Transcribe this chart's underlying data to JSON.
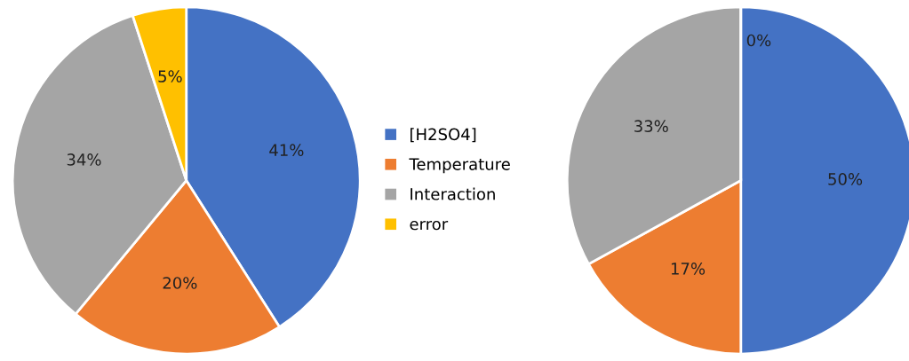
{
  "chart_data": [
    {
      "type": "pie",
      "categories": [
        "[H2SO4]",
        "Temperature",
        "Interaction",
        "error"
      ],
      "values": [
        41,
        20,
        34,
        5
      ],
      "value_labels": [
        "41%",
        "20%",
        "34%",
        "5%"
      ],
      "colors": [
        "#4472c4",
        "#ed7d31",
        "#a5a5a5",
        "#ffc000"
      ],
      "legend": "right"
    },
    {
      "type": "pie",
      "values": [
        50,
        17,
        33,
        0
      ],
      "value_labels": [
        "50%",
        "17%",
        "33%",
        "0%"
      ],
      "colors": [
        "#4472c4",
        "#ed7d31",
        "#a5a5a5",
        "#ffc000"
      ]
    }
  ]
}
